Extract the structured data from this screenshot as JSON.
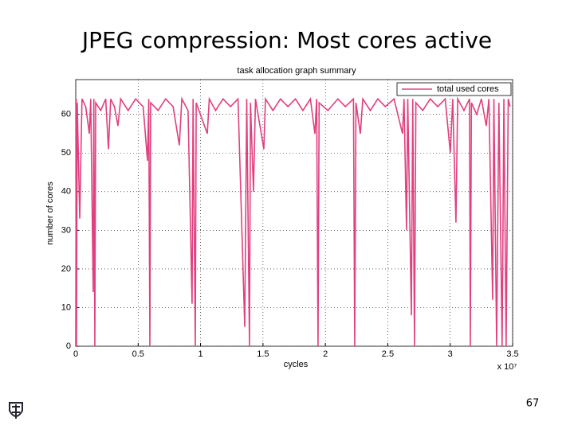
{
  "slide_title": "JPEG compression: Most cores active",
  "page_number": "67",
  "chart_data": {
    "type": "line",
    "title": "task allocation graph summary",
    "xlabel": "cycles",
    "ylabel": "number of cores",
    "x_multiplier": "x 10⁷",
    "xlim": [
      0,
      3.5
    ],
    "xticks": [
      0,
      0.5,
      1,
      1.5,
      2,
      2.5,
      3,
      3.5
    ],
    "ylim": [
      0,
      69
    ],
    "yticks": [
      0,
      10,
      20,
      30,
      40,
      50,
      60
    ],
    "grid": true,
    "legend": "upper right",
    "x": [
      0,
      0.004,
      0.006,
      0.012,
      0.032,
      0.05,
      0.08,
      0.109,
      0.12,
      0.14,
      0.145,
      0.153,
      0.16,
      0.2,
      0.24,
      0.262,
      0.28,
      0.31,
      0.338,
      0.36,
      0.42,
      0.48,
      0.54,
      0.575,
      0.585,
      0.594,
      0.6,
      0.66,
      0.72,
      0.78,
      0.83,
      0.85,
      0.9,
      0.932,
      0.94,
      0.958,
      0.965,
      1.054,
      1.07,
      1.12,
      1.18,
      1.24,
      1.3,
      1.354,
      1.37,
      1.392,
      1.4,
      1.424,
      1.44,
      1.507,
      1.52,
      1.58,
      1.64,
      1.7,
      1.76,
      1.82,
      1.88,
      1.916,
      1.93,
      1.941,
      1.95,
      2.02,
      2.1,
      2.16,
      2.225,
      2.235,
      2.245,
      2.28,
      2.3,
      2.36,
      2.42,
      2.48,
      2.55,
      2.618,
      2.63,
      2.65,
      2.66,
      2.689,
      2.7,
      2.714,
      2.725,
      2.78,
      2.84,
      2.9,
      2.96,
      3.001,
      3.02,
      3.046,
      3.06,
      3.11,
      3.155,
      3.161,
      3.17,
      3.212,
      3.25,
      3.289,
      3.31,
      3.34,
      3.35,
      3.372,
      3.39,
      3.416,
      3.43,
      3.448,
      3.465,
      3.48
    ],
    "series": [
      {
        "name": "total used cores",
        "color": "#e0407f",
        "values": [
          0,
          64,
          0,
          63,
          33,
          64,
          62,
          55,
          64,
          14,
          64,
          0,
          63,
          61,
          64,
          51,
          64,
          62,
          57,
          64,
          61,
          64,
          62,
          48,
          64,
          0,
          63,
          61,
          64,
          62,
          52,
          64,
          61,
          11,
          64,
          0,
          63,
          55,
          64,
          61,
          64,
          62,
          64,
          5,
          64,
          0,
          63,
          40,
          64,
          51,
          64,
          61,
          64,
          62,
          64,
          61,
          64,
          55,
          64,
          0,
          63,
          61,
          64,
          62,
          64,
          0,
          63,
          55,
          64,
          61,
          64,
          62,
          64,
          55,
          64,
          30,
          64,
          8,
          64,
          0,
          63,
          61,
          64,
          62,
          64,
          50,
          64,
          32,
          64,
          61,
          64,
          0,
          63,
          60,
          64,
          57,
          64,
          12,
          64,
          0,
          63,
          0,
          64,
          0,
          64,
          62
        ]
      }
    ]
  }
}
